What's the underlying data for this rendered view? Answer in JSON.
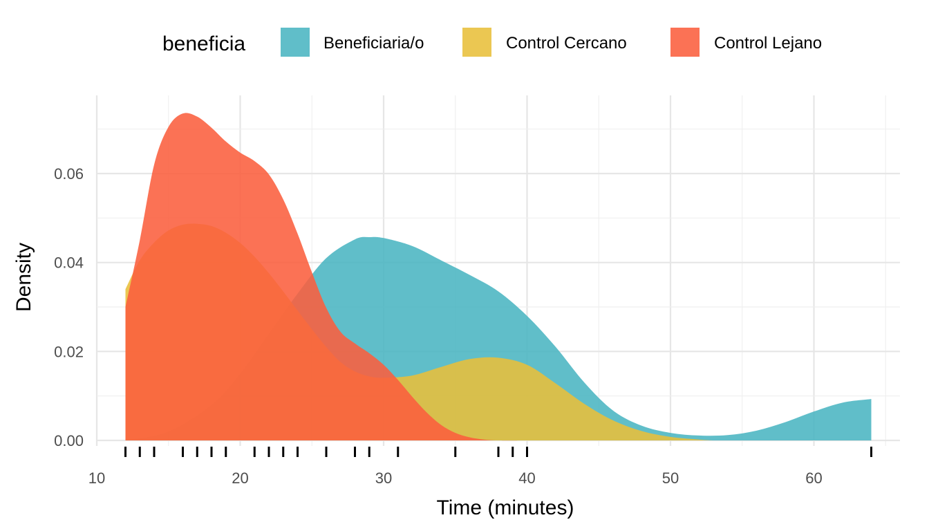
{
  "chart_data": {
    "type": "area",
    "subtype": "density",
    "xlabel": "Time (minutes)",
    "ylabel": "Density",
    "xlim": [
      10,
      66
    ],
    "ylim": [
      0,
      0.075
    ],
    "x_ticks": [
      10,
      20,
      30,
      40,
      50,
      60
    ],
    "x_tick_labels": [
      "10",
      "20",
      "30",
      "40",
      "50",
      "60"
    ],
    "y_ticks": [
      0.0,
      0.02,
      0.04,
      0.06
    ],
    "y_tick_labels": [
      "0.00",
      "0.02",
      "0.04",
      "0.06"
    ],
    "grid": true,
    "legend": {
      "title": "beneficia",
      "position": "top"
    },
    "series": [
      {
        "name": "Beneficiaria/o",
        "color": "#4AB5C1",
        "x": [
          12,
          15,
          18,
          20,
          22,
          24,
          26,
          28,
          29,
          30,
          32,
          34,
          36,
          38,
          40,
          42,
          44,
          46,
          48,
          50,
          52,
          54,
          56,
          58,
          60,
          62,
          64
        ],
        "y": [
          0.0,
          0.002,
          0.008,
          0.015,
          0.024,
          0.033,
          0.041,
          0.0452,
          0.0457,
          0.0455,
          0.0437,
          0.0405,
          0.0372,
          0.0335,
          0.028,
          0.021,
          0.013,
          0.0067,
          0.0033,
          0.0017,
          0.0011,
          0.0012,
          0.0022,
          0.0041,
          0.0065,
          0.0085,
          0.0093
        ]
      },
      {
        "name": "Control Cercano",
        "color": "#E8BF3A",
        "x": [
          12,
          13,
          14,
          15,
          16,
          17,
          18,
          19,
          20,
          21,
          22,
          23,
          24,
          25,
          26,
          27,
          28,
          29,
          30,
          32,
          34,
          36,
          38,
          40,
          42,
          44,
          46,
          48,
          50,
          52,
          53
        ],
        "y": [
          0.034,
          0.0405,
          0.0445,
          0.0472,
          0.0485,
          0.0487,
          0.0482,
          0.0467,
          0.0444,
          0.0413,
          0.0376,
          0.0335,
          0.0292,
          0.025,
          0.021,
          0.0176,
          0.0155,
          0.0144,
          0.0141,
          0.0146,
          0.0165,
          0.0183,
          0.0186,
          0.017,
          0.0128,
          0.0082,
          0.0045,
          0.0021,
          0.0008,
          0.0002,
          0.0
        ]
      },
      {
        "name": "Control Lejano",
        "color": "#FB5F3E",
        "x": [
          12,
          13,
          14,
          15,
          16,
          17,
          18,
          19,
          20,
          21,
          22,
          23,
          24,
          25,
          26,
          27,
          28,
          29,
          30,
          31,
          32,
          33,
          34,
          35,
          36,
          37,
          38,
          40
        ],
        "y": [
          0.03,
          0.045,
          0.062,
          0.0705,
          0.0735,
          0.0728,
          0.0703,
          0.0672,
          0.0647,
          0.0628,
          0.0598,
          0.0542,
          0.0465,
          0.0378,
          0.0298,
          0.0244,
          0.0218,
          0.0196,
          0.017,
          0.0136,
          0.0098,
          0.0063,
          0.0035,
          0.0017,
          0.0007,
          0.0002,
          0.0,
          0.0
        ]
      }
    ],
    "rug_x": [
      12,
      13,
      14,
      16,
      17,
      18,
      19,
      21,
      22,
      23,
      24,
      26,
      28,
      29,
      31,
      35,
      38,
      39,
      40,
      64
    ]
  }
}
